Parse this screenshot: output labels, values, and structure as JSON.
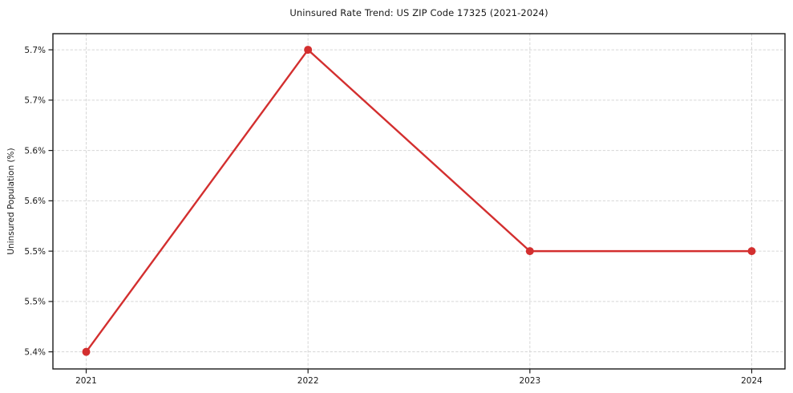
{
  "chart_data": {
    "type": "line",
    "title": "Uninsured Rate Trend: US ZIP Code 17325 (2021-2024)",
    "xlabel": "",
    "ylabel": "Uninsured Population (%)",
    "categories": [
      2021,
      2022,
      2023,
      2024
    ],
    "series": [
      {
        "name": "Uninsured rate",
        "values": [
          5.4,
          5.7,
          5.5,
          5.5
        ]
      }
    ],
    "x_tick_labels": [
      "2021",
      "2022",
      "2023",
      "2024"
    ],
    "y_ticks": [
      {
        "value": 5.4,
        "label": "5.4%"
      },
      {
        "value": 5.45,
        "label": "5.5%"
      },
      {
        "value": 5.5,
        "label": "5.5%"
      },
      {
        "value": 5.55,
        "label": "5.6%"
      },
      {
        "value": 5.6,
        "label": "5.6%"
      },
      {
        "value": 5.65,
        "label": "5.7%"
      },
      {
        "value": 5.7,
        "label": "5.7%"
      }
    ],
    "ylim": [
      5.383,
      5.716
    ],
    "xlim": [
      2020.85,
      2024.15
    ],
    "grid": true,
    "grid_style": "dashed",
    "legend": false,
    "colors": {
      "line": "#d32f2f",
      "marker": "#d32f2f",
      "grid": "#d6d6d6",
      "axis": "#1a1a1a",
      "text": "#1a1a1a",
      "background": "#ffffff"
    }
  }
}
